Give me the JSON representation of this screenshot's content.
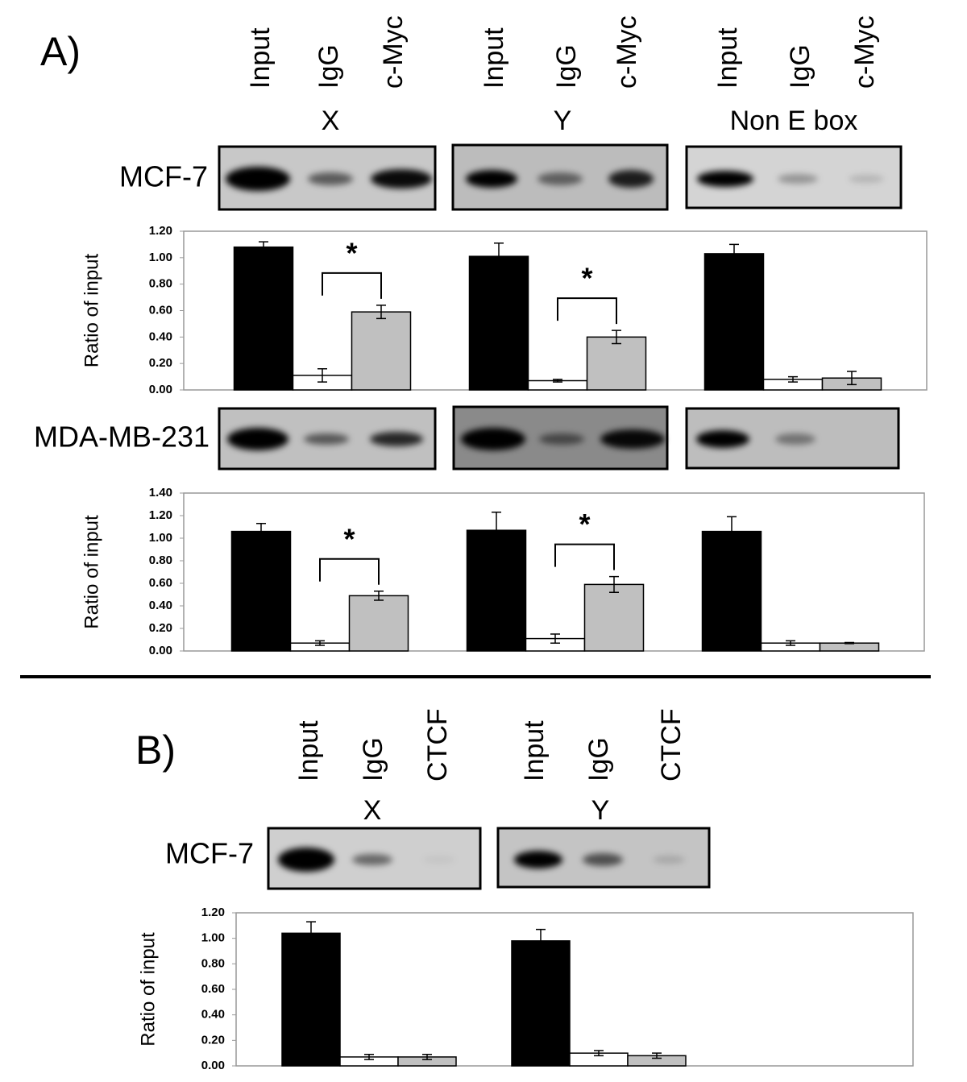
{
  "figure": {
    "panel_a_label": "A)",
    "panel_b_label": "B)"
  },
  "chart_data": [
    {
      "type": "bar",
      "gel_label": "MCF-7",
      "y_label": "Ratio of input",
      "categories": [
        "X",
        "Y",
        "Non E box"
      ],
      "series": [
        {
          "name": "Input",
          "color": "#000000",
          "values": [
            1.08,
            1.01,
            1.03
          ],
          "errors": [
            0.04,
            0.1,
            0.07
          ]
        },
        {
          "name": "IgG",
          "color": "#ffffff",
          "values": [
            0.11,
            0.07,
            0.08
          ],
          "errors": [
            0.05,
            0.01,
            0.02
          ]
        },
        {
          "name": "c-Myc",
          "color": "#c0c0c0",
          "values": [
            0.59,
            0.4,
            0.09
          ],
          "errors": [
            0.05,
            0.05,
            0.05
          ]
        }
      ],
      "annotations": [
        "*",
        "*",
        null
      ],
      "ylim": [
        0,
        1.2
      ],
      "yticks": [
        {
          "value": 0,
          "label": "0.00"
        },
        {
          "value": 0.2,
          "label": "0.20"
        },
        {
          "value": 0.4,
          "label": "0.40"
        },
        {
          "value": 0.6,
          "label": "0.60"
        },
        {
          "value": 0.8,
          "label": "0.80"
        },
        {
          "value": 1,
          "label": "1.00"
        },
        {
          "value": 1.2,
          "label": "1.20"
        }
      ]
    },
    {
      "type": "bar",
      "gel_label": "MDA-MB-231",
      "y_label": "Ratio of input",
      "categories": [
        null,
        null,
        null
      ],
      "series": [
        {
          "color": "#000000",
          "values": [
            1.06,
            1.07,
            1.06
          ],
          "errors": [
            0.07,
            0.16,
            0.13
          ]
        },
        {
          "color": "#ffffff",
          "values": [
            0.07,
            0.11,
            0.07
          ],
          "errors": [
            0.02,
            0.04,
            0.02
          ]
        },
        {
          "color": "#c0c0c0",
          "values": [
            0.49,
            0.59,
            0.07
          ],
          "errors": [
            0.04,
            0.07,
            0.005
          ]
        }
      ],
      "annotations": [
        "*",
        "*",
        null
      ],
      "ylim": [
        0,
        1.4
      ],
      "yticks": [
        {
          "value": 0,
          "label": "0.00"
        },
        {
          "value": 0.2,
          "label": "0.20"
        },
        {
          "value": 0.4,
          "label": "0.40"
        },
        {
          "value": 0.6,
          "label": "0.60"
        },
        {
          "value": 0.8,
          "label": "0.80"
        },
        {
          "value": 1,
          "label": "1.00"
        },
        {
          "value": 1.2,
          "label": "1.20"
        },
        {
          "value": 1.4,
          "label": "1.40"
        }
      ]
    },
    {
      "type": "bar",
      "gel_label": "MCF-7",
      "y_label": "Ratio of input",
      "categories": [
        "X",
        "Y"
      ],
      "series": [
        {
          "name": "Input",
          "color": "#000000",
          "values": [
            1.04,
            0.98
          ],
          "errors": [
            0.09,
            0.09
          ]
        },
        {
          "name": "IgG",
          "color": "#ffffff",
          "values": [
            0.07,
            0.1
          ],
          "errors": [
            0.02,
            0.02
          ]
        },
        {
          "name": "CTCF",
          "color": "#c0c0c0",
          "values": [
            0.07,
            0.08
          ],
          "errors": [
            0.02,
            0.02
          ]
        }
      ],
      "annotations": [
        null,
        null
      ],
      "ylim": [
        0,
        1.2
      ],
      "yticks": [
        {
          "value": 0,
          "label": "0.00"
        },
        {
          "value": 0.2,
          "label": "0.20"
        },
        {
          "value": 0.4,
          "label": "0.40"
        },
        {
          "value": 0.6,
          "label": "0.60"
        },
        {
          "value": 0.8,
          "label": "0.80"
        },
        {
          "value": 1,
          "label": "1.00"
        },
        {
          "value": 1.2,
          "label": "1.20"
        }
      ]
    }
  ]
}
